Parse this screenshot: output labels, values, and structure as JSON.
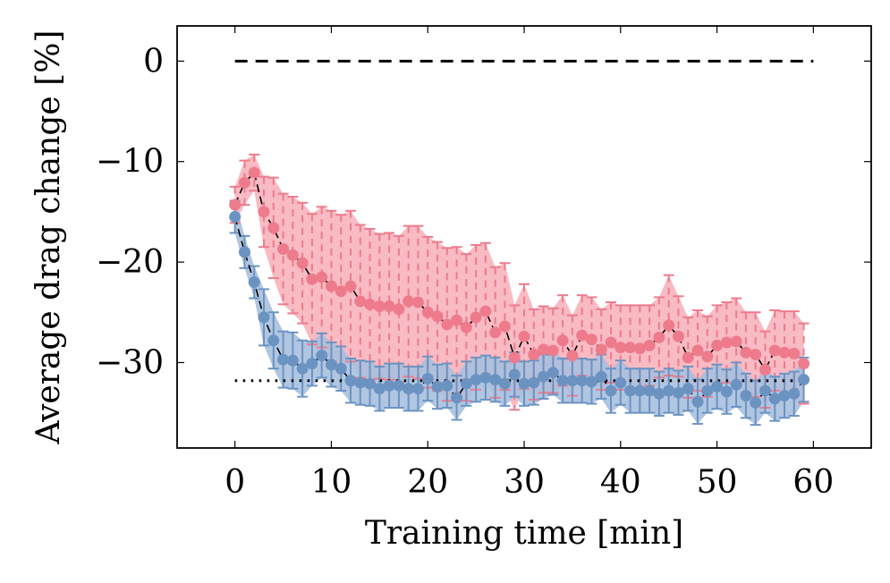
{
  "chart_data": {
    "type": "line",
    "xlabel": "Training time [min]",
    "ylabel": "Average drag change [%]",
    "xlim": [
      -6,
      66
    ],
    "ylim": [
      -38.5,
      3.5
    ],
    "xticks": [
      0,
      10,
      20,
      30,
      40,
      50,
      60
    ],
    "yticks": [
      0,
      -10,
      -20,
      -30
    ],
    "ytick_labels": [
      "0",
      "−10",
      "−20",
      "−30"
    ],
    "grid": false,
    "legend": "none",
    "reference_lines": [
      {
        "y": 0,
        "x_range": [
          0,
          60
        ],
        "style": "dashed",
        "color": "#000000"
      },
      {
        "y": -31.8,
        "x_range": [
          0,
          60
        ],
        "style": "dotted",
        "color": "#000000"
      }
    ],
    "series": [
      {
        "color": "#ee7b8c",
        "band_color": "#f7b2bc",
        "x": [
          0,
          1,
          2,
          3,
          4,
          5,
          6,
          7,
          8,
          9,
          10,
          11,
          12,
          13,
          14,
          15,
          16,
          17,
          18,
          19,
          20,
          21,
          22,
          23,
          24,
          25,
          26,
          27,
          28,
          29,
          30,
          31,
          32,
          33,
          34,
          35,
          36,
          37,
          38,
          39,
          40,
          41,
          42,
          43,
          44,
          45,
          46,
          47,
          48,
          49,
          50,
          51,
          52,
          53,
          54,
          55,
          56,
          57,
          58,
          59
        ],
        "mean": [
          -14.3,
          -12.1,
          -11.1,
          -15.0,
          -16.6,
          -18.7,
          -19.3,
          -20.1,
          -21.7,
          -21.5,
          -22.4,
          -22.9,
          -22.4,
          -23.9,
          -24.2,
          -24.4,
          -24.4,
          -24.7,
          -23.9,
          -24.0,
          -25.0,
          -25.4,
          -26.2,
          -25.8,
          -26.5,
          -25.5,
          -24.9,
          -27.0,
          -26.4,
          -29.5,
          -27.4,
          -29.2,
          -28.7,
          -28.8,
          -27.8,
          -29.3,
          -27.3,
          -27.7,
          -28.7,
          -28.0,
          -28.5,
          -28.5,
          -28.6,
          -28.3,
          -27.5,
          -26.3,
          -27.4,
          -29.5,
          -28.8,
          -29.4,
          -28.3,
          -28.0,
          -27.9,
          -29.0,
          -29.2,
          -30.7,
          -28.8,
          -29.0,
          -29.1,
          -30.1
        ],
        "err": [
          1.8,
          2.2,
          1.8,
          3.5,
          5.0,
          5.5,
          5.8,
          6.0,
          6.5,
          7.0,
          7.5,
          7.6,
          7.5,
          7.6,
          7.5,
          7.2,
          7.3,
          7.3,
          7.5,
          7.6,
          7.5,
          7.4,
          7.6,
          7.3,
          7.3,
          7.2,
          6.8,
          6.5,
          6.3,
          5.2,
          5.2,
          4.5,
          4.3,
          4.2,
          4.5,
          4.0,
          4.0,
          4.2,
          4.0,
          4.0,
          4.2,
          4.2,
          4.3,
          4.0,
          4.0,
          5.0,
          4.0,
          4.0,
          4.0,
          4.0,
          4.0,
          4.0,
          4.3,
          4.0,
          4.2,
          3.8,
          4.0,
          4.1,
          4.2,
          4.0
        ]
      },
      {
        "color": "#6b93c2",
        "band_color": "#a7c0de",
        "x": [
          0,
          1,
          2,
          3,
          4,
          5,
          6,
          7,
          8,
          9,
          10,
          11,
          12,
          13,
          14,
          15,
          16,
          17,
          18,
          19,
          20,
          21,
          22,
          23,
          24,
          25,
          26,
          27,
          28,
          29,
          30,
          31,
          32,
          33,
          34,
          35,
          36,
          37,
          38,
          39,
          40,
          41,
          42,
          43,
          44,
          45,
          46,
          47,
          48,
          49,
          50,
          51,
          52,
          53,
          54,
          55,
          56,
          57,
          58,
          59
        ],
        "mean": [
          -15.5,
          -19.0,
          -22.0,
          -25.5,
          -27.8,
          -29.7,
          -29.8,
          -30.6,
          -30.1,
          -29.3,
          -30.2,
          -30.6,
          -31.8,
          -32.0,
          -32.1,
          -32.6,
          -32.3,
          -32.3,
          -32.6,
          -32.6,
          -31.6,
          -32.4,
          -32.3,
          -33.5,
          -32.1,
          -31.7,
          -31.5,
          -31.7,
          -32.1,
          -31.2,
          -32.1,
          -32.0,
          -31.4,
          -31.0,
          -31.8,
          -31.8,
          -31.8,
          -31.9,
          -31.4,
          -32.8,
          -32.0,
          -32.8,
          -32.8,
          -32.8,
          -33.1,
          -32.8,
          -33.0,
          -32.6,
          -33.9,
          -32.8,
          -32.4,
          -32.9,
          -32.2,
          -33.3,
          -34.0,
          -32.8,
          -33.6,
          -33.3,
          -33.1,
          -31.7
        ]
      }
    ]
  }
}
